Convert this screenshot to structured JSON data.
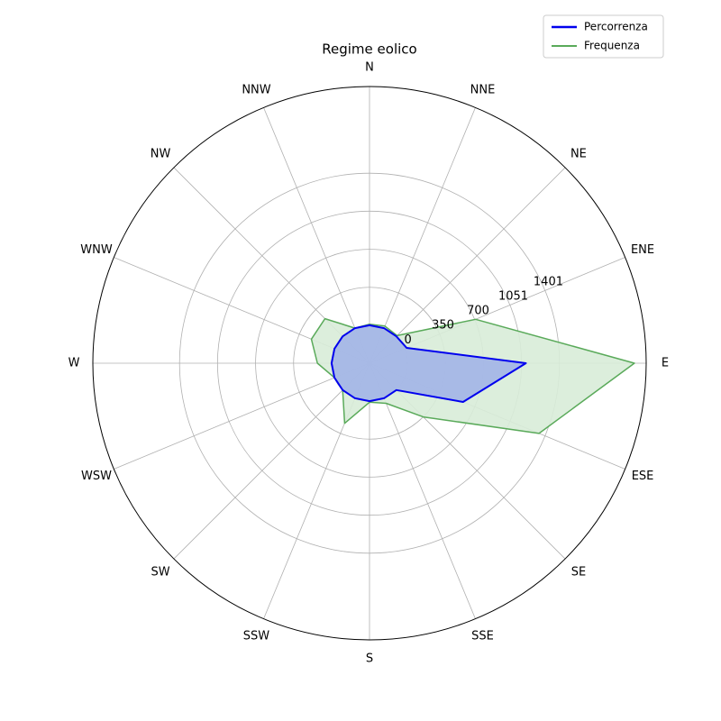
{
  "chart_data": {
    "type": "polar-area",
    "title": "Regime eolico",
    "categories": [
      "N",
      "NNE",
      "NE",
      "ENE",
      "E",
      "ESE",
      "SE",
      "SSE",
      "S",
      "SSW",
      "SW",
      "WSW",
      "W",
      "WNW",
      "NW",
      "NNW"
    ],
    "series": [
      {
        "name": "Percorrenza",
        "color": "#0000ee",
        "fill": "#9fb0e8",
        "values": [
          0,
          0,
          0,
          20,
          1091,
          583,
          0,
          0,
          0,
          0,
          0,
          0,
          0,
          0,
          0,
          0
        ]
      },
      {
        "name": "Frequenza",
        "color": "#5aaa5a",
        "fill": "#d8ecd8",
        "values": [
          10,
          20,
          10,
          708,
          2091,
          1341,
          350,
          50,
          10,
          250,
          0,
          0,
          130,
          230,
          230,
          0
        ]
      }
    ],
    "rlim": [
      -350,
      2200
    ],
    "rticks": [
      0,
      350,
      700,
      1051,
      1401
    ],
    "grid": true,
    "legend": "upper right"
  }
}
